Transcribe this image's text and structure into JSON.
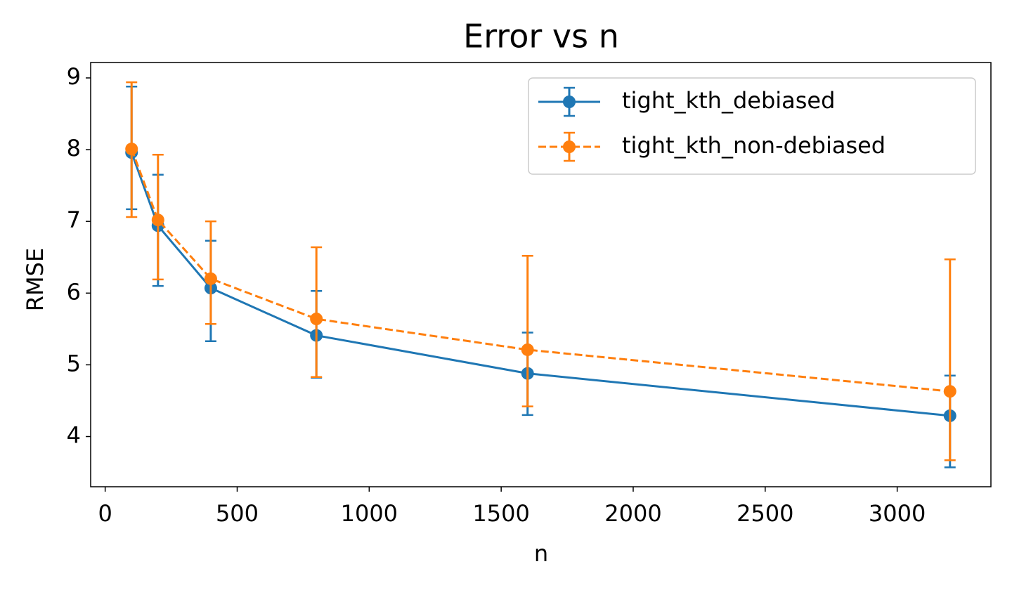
{
  "chart_data": {
    "type": "errorbar-line",
    "title": "Error vs n",
    "x_label": "n",
    "y_label": "RMSE",
    "x": [
      100,
      200,
      400,
      800,
      1600,
      3200
    ],
    "series": [
      {
        "name": "tight_kth_debiased",
        "color": "#1f77b4",
        "dash": false,
        "values": [
          7.96,
          6.94,
          6.07,
          5.41,
          4.88,
          4.29
        ],
        "err_minus": [
          0.79,
          0.84,
          0.74,
          0.59,
          0.58,
          0.72
        ],
        "err_plus": [
          0.92,
          0.71,
          0.66,
          0.62,
          0.57,
          0.56
        ]
      },
      {
        "name": "tight_kth_non-debiased",
        "color": "#ff7f0e",
        "dash": true,
        "values": [
          8.01,
          7.02,
          6.2,
          5.64,
          5.21,
          4.63
        ],
        "err_minus": [
          0.95,
          0.83,
          0.63,
          0.81,
          0.79,
          0.96
        ],
        "err_plus": [
          0.93,
          0.91,
          0.8,
          1.0,
          1.31,
          1.84
        ]
      }
    ],
    "xlim": [
      -55,
      3355
    ],
    "xticks": [
      0,
      500,
      1000,
      1500,
      2000,
      2500,
      3000
    ],
    "ylim": [
      3.3,
      9.215
    ],
    "yticks": [
      4,
      5,
      6,
      7,
      8,
      9
    ],
    "legend": "upper right",
    "grid": false
  }
}
